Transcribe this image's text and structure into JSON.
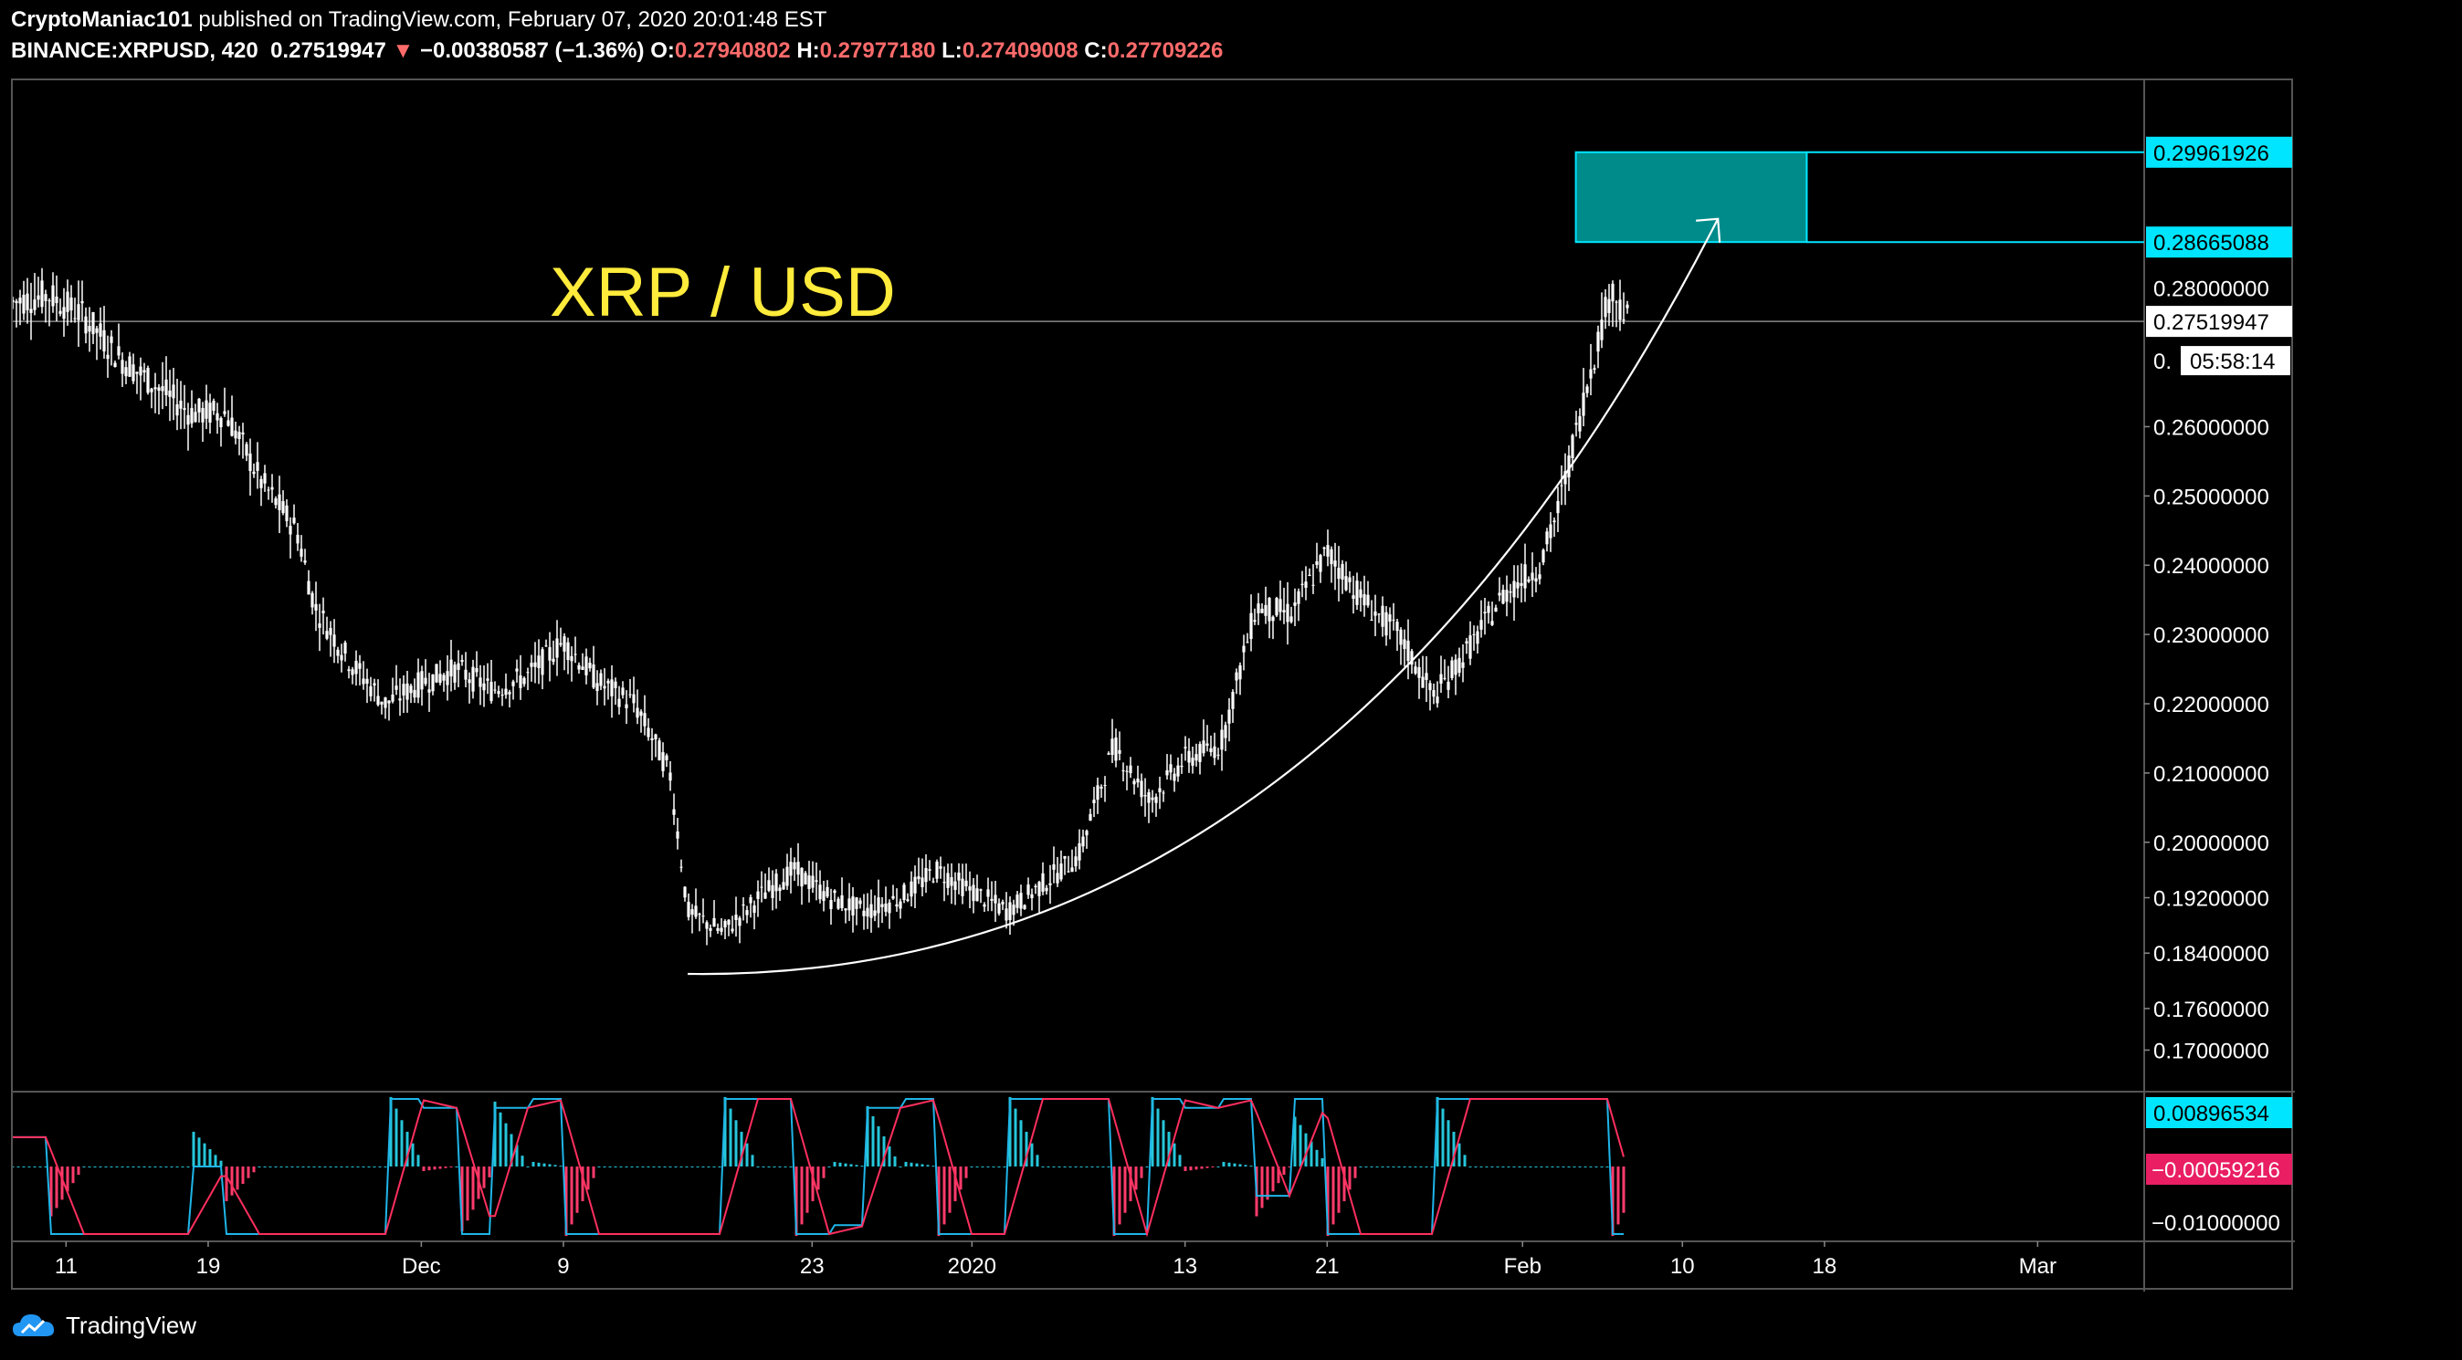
{
  "header": {
    "author": "CryptoManiac101",
    "published": "published on TradingView.com, February 07, 2020 20:01:48 EST",
    "symbol": "BINANCE:XRPUSD, 420",
    "last": "0.27519947",
    "down_arrow": "▼",
    "change": "−0.00380587 (−1.36%)",
    "o_label": "O:",
    "o": "0.27940802",
    "h_label": "H:",
    "h": "0.27977180",
    "l_label": "L:",
    "l": "0.27409008",
    "c_label": "C:",
    "c": "0.27709226"
  },
  "footer": {
    "brand": "TradingView"
  },
  "colors": {
    "candle": "#ffffff",
    "accent_cyan": "#00e5ff",
    "target_fill": "#008b8b",
    "title_yellow": "#ffeb3b",
    "macd_line": "#1fb5e8",
    "signal_line": "#ff2f5e",
    "hist_pos": "#26c6da",
    "hist_neg": "#ff3b6b",
    "signal_badge": "#e91e63"
  },
  "chart_data": {
    "type": "candlestick",
    "title": "XRP / USD",
    "y_ticks": [
      "0.26000000",
      "0.25000000",
      "0.24000000",
      "0.23000000",
      "0.22000000",
      "0.21000000",
      "0.20000000",
      "0.19200000",
      "0.18400000",
      "0.17600000",
      "0.17000000"
    ],
    "x_ticks": [
      "11",
      "19",
      "Dec",
      "9",
      "23",
      "2020",
      "13",
      "21",
      "Feb",
      "10",
      "18",
      "Mar"
    ],
    "x_tick_dates": [
      "2019-11-11",
      "2019-11-19",
      "2019-12-01",
      "2019-12-09",
      "2019-12-23",
      "2020-01-01",
      "2020-01-13",
      "2020-01-21",
      "2020-02-01",
      "2020-02-10",
      "2020-02-18",
      "2020-03-01"
    ],
    "x_range": [
      "2019-11-08",
      "2020-03-07"
    ],
    "y_range": [
      0.164,
      0.31
    ],
    "price_labels": {
      "target_top": "0.29961926",
      "target_bottom": "0.28665088",
      "level_1": "0.28000000",
      "last_price": "0.27519947",
      "truncated": "0.",
      "countdown": "05:58:14"
    },
    "target_zone": {
      "top": 0.29961926,
      "bottom": 0.28665088,
      "x_start": "2020-02-04",
      "x_mid": "2020-02-17",
      "x_end": "2020-03-07"
    },
    "arc": {
      "start": [
        "2019-12-16",
        0.181
      ],
      "end": [
        "2020-02-12",
        0.29
      ]
    },
    "series": [
      {
        "values": [
          [
            "2019-11-08",
            0.278
          ],
          [
            "2019-11-10",
            0.279
          ],
          [
            "2019-11-12",
            0.276
          ],
          [
            "2019-11-14",
            0.27
          ],
          [
            "2019-11-16",
            0.266
          ],
          [
            "2019-11-18",
            0.262
          ],
          [
            "2019-11-20",
            0.262
          ],
          [
            "2019-11-22",
            0.252
          ],
          [
            "2019-11-24",
            0.245
          ],
          [
            "2019-11-25",
            0.234
          ],
          [
            "2019-11-27",
            0.226
          ],
          [
            "2019-11-29",
            0.22
          ],
          [
            "2019-12-01",
            0.223
          ],
          [
            "2019-12-03",
            0.225
          ],
          [
            "2019-12-05",
            0.222
          ],
          [
            "2019-12-07",
            0.224
          ],
          [
            "2019-12-09",
            0.229
          ],
          [
            "2019-12-11",
            0.223
          ],
          [
            "2019-12-13",
            0.22
          ],
          [
            "2019-12-15",
            0.21
          ],
          [
            "2019-12-16",
            0.19
          ],
          [
            "2019-12-18",
            0.187
          ],
          [
            "2019-12-20",
            0.192
          ],
          [
            "2019-12-22",
            0.196
          ],
          [
            "2019-12-24",
            0.192
          ],
          [
            "2019-12-26",
            0.19
          ],
          [
            "2019-12-28",
            0.192
          ],
          [
            "2019-12-30",
            0.196
          ],
          [
            "2020-01-01",
            0.193
          ],
          [
            "2020-01-03",
            0.19
          ],
          [
            "2020-01-05",
            0.194
          ],
          [
            "2020-01-07",
            0.198
          ],
          [
            "2020-01-09",
            0.214
          ],
          [
            "2020-01-11",
            0.206
          ],
          [
            "2020-01-13",
            0.212
          ],
          [
            "2020-01-15",
            0.214
          ],
          [
            "2020-01-17",
            0.234
          ],
          [
            "2020-01-19",
            0.233
          ],
          [
            "2020-01-21",
            0.242
          ],
          [
            "2020-01-23",
            0.235
          ],
          [
            "2020-01-25",
            0.23
          ],
          [
            "2020-01-27",
            0.221
          ],
          [
            "2020-01-29",
            0.228
          ],
          [
            "2020-01-31",
            0.236
          ],
          [
            "2020-02-02",
            0.24
          ],
          [
            "2020-02-03",
            0.248
          ],
          [
            "2020-02-05",
            0.27
          ],
          [
            "2020-02-06",
            0.28
          ],
          [
            "2020-02-07",
            0.275
          ]
        ]
      }
    ],
    "macd": {
      "macd_label": "0.00896534",
      "signal_label": "−0.00059216",
      "axis_label": "−0.01000000",
      "range": [
        -0.016,
        0.016
      ]
    }
  }
}
